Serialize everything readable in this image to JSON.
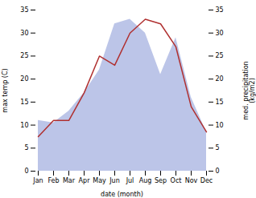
{
  "chart_data": {
    "type": "line",
    "categories": [
      "Jan",
      "Feb",
      "Mar",
      "Apr",
      "May",
      "Jun",
      "Jul",
      "Aug",
      "Sep",
      "Oct",
      "Nov",
      "Dec"
    ],
    "xlabel": "date (month)",
    "ylabel": "max temp (C)",
    "y2label": "med. precipitation\n(kg/m2)",
    "series": [
      {
        "type": "area",
        "axis": "y2",
        "color": "#bcc5e8",
        "values": [
          11,
          10.5,
          13,
          17,
          22,
          32,
          33,
          30,
          21,
          29,
          16,
          8.5
        ]
      },
      {
        "type": "line",
        "color": "#b03030",
        "values": [
          7.5,
          11,
          11,
          17,
          25,
          23,
          30,
          33,
          32,
          27,
          14,
          8.5
        ]
      }
    ],
    "ylim": [
      0,
      35
    ],
    "yticks": [
      0,
      5,
      10,
      15,
      20,
      25,
      30,
      35
    ],
    "y2lim": [
      0,
      35
    ],
    "y2ticks": [
      0,
      5,
      10,
      15,
      20,
      25,
      30,
      35
    ]
  }
}
